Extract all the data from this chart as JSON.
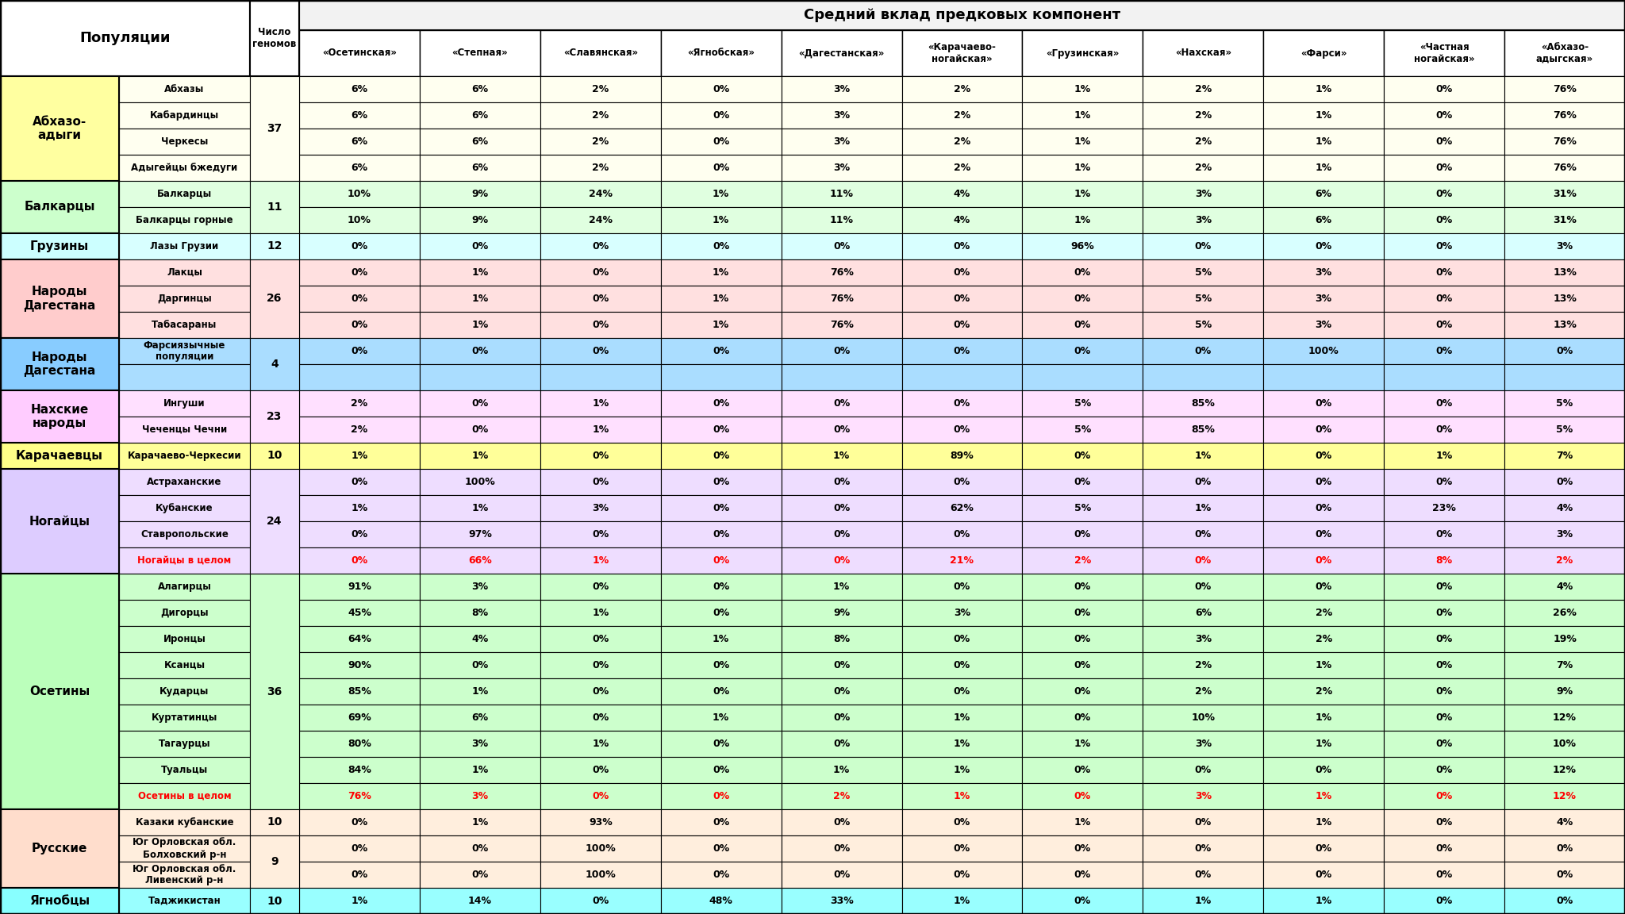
{
  "title_header": "Средний вклад предковых компонент",
  "col1_header": "Популяции",
  "col2_header": "Число\nгеномов",
  "col_headers": [
    "«Осетинская»",
    "«Степная»",
    "«Славянская»",
    "«Ягнобская»",
    "«Дагестанская»",
    "«Карачаево-\nногайская»",
    "«Грузинская»",
    "«Нахская»",
    "«Фарси»",
    "«Частная\nногайская»",
    "«Абхазо-\nадыгская»"
  ],
  "rows": [
    {
      "group": "Абхазо-\nадыги",
      "gcolor": "#ffffa0",
      "gsz": 4,
      "genomes": "37",
      "gsz_genome": 4,
      "sub": "Абхазы",
      "scolor": "#fffff0",
      "red": false,
      "vals": [
        "6%",
        "6%",
        "2%",
        "0%",
        "3%",
        "2%",
        "1%",
        "2%",
        "1%",
        "0%",
        "76%"
      ]
    },
    {
      "group": "Абхазо-\nадыги",
      "gcolor": "#ffffa0",
      "gsz": 4,
      "genomes": "",
      "gsz_genome": 0,
      "sub": "Кабардинцы",
      "scolor": "#fffff0",
      "red": false,
      "vals": [
        "6%",
        "6%",
        "2%",
        "0%",
        "3%",
        "2%",
        "1%",
        "2%",
        "1%",
        "0%",
        "76%"
      ]
    },
    {
      "group": "Абхазо-\nадыги",
      "gcolor": "#ffffa0",
      "gsz": 4,
      "genomes": "",
      "gsz_genome": 0,
      "sub": "Черкесы",
      "scolor": "#fffff0",
      "red": false,
      "vals": [
        "6%",
        "6%",
        "2%",
        "0%",
        "3%",
        "2%",
        "1%",
        "2%",
        "1%",
        "0%",
        "76%"
      ]
    },
    {
      "group": "Абхазо-\nадыги",
      "gcolor": "#ffffa0",
      "gsz": 4,
      "genomes": "",
      "gsz_genome": 0,
      "sub": "Адыгейцы бжедуги",
      "scolor": "#fffff0",
      "red": false,
      "vals": [
        "6%",
        "6%",
        "2%",
        "0%",
        "3%",
        "2%",
        "1%",
        "2%",
        "1%",
        "0%",
        "76%"
      ]
    },
    {
      "group": "Балкарцы",
      "gcolor": "#ccffcc",
      "gsz": 2,
      "genomes": "11",
      "gsz_genome": 2,
      "sub": "Балкарцы",
      "scolor": "#e0ffe0",
      "red": false,
      "vals": [
        "10%",
        "9%",
        "24%",
        "1%",
        "11%",
        "4%",
        "1%",
        "3%",
        "6%",
        "0%",
        "31%"
      ]
    },
    {
      "group": "Балкарцы",
      "gcolor": "#ccffcc",
      "gsz": 2,
      "genomes": "",
      "gsz_genome": 0,
      "sub": "Балкарцы горные",
      "scolor": "#e0ffe0",
      "red": false,
      "vals": [
        "10%",
        "9%",
        "24%",
        "1%",
        "11%",
        "4%",
        "1%",
        "3%",
        "6%",
        "0%",
        "31%"
      ]
    },
    {
      "group": "Грузины",
      "gcolor": "#ccffff",
      "gsz": 1,
      "genomes": "12",
      "gsz_genome": 1,
      "sub": "Лазы Грузии",
      "scolor": "#d8ffff",
      "red": false,
      "vals": [
        "0%",
        "0%",
        "0%",
        "0%",
        "0%",
        "0%",
        "96%",
        "0%",
        "0%",
        "0%",
        "3%"
      ]
    },
    {
      "group": "Народы\nДагестана",
      "gcolor": "#ffcccc",
      "gsz": 3,
      "genomes": "26",
      "gsz_genome": 3,
      "sub": "Лакцы",
      "scolor": "#ffe0e0",
      "red": false,
      "vals": [
        "0%",
        "1%",
        "0%",
        "1%",
        "76%",
        "0%",
        "0%",
        "5%",
        "3%",
        "0%",
        "13%"
      ]
    },
    {
      "group": "Народы\nДагестана",
      "gcolor": "#ffcccc",
      "gsz": 3,
      "genomes": "",
      "gsz_genome": 0,
      "sub": "Даргинцы",
      "scolor": "#ffe0e0",
      "red": false,
      "vals": [
        "0%",
        "1%",
        "0%",
        "1%",
        "76%",
        "0%",
        "0%",
        "5%",
        "3%",
        "0%",
        "13%"
      ]
    },
    {
      "group": "Народы\nДагестана",
      "gcolor": "#ffcccc",
      "gsz": 3,
      "genomes": "",
      "gsz_genome": 0,
      "sub": "Табасараны",
      "scolor": "#ffe0e0",
      "red": false,
      "vals": [
        "0%",
        "1%",
        "0%",
        "1%",
        "76%",
        "0%",
        "0%",
        "5%",
        "3%",
        "0%",
        "13%"
      ]
    },
    {
      "group": "Народы\nДагестана_2",
      "gcolor": "#88ccff",
      "gsz": 2,
      "genomes": "4",
      "gsz_genome": 2,
      "sub": "Фарсиязычные\nпопуляции",
      "scolor": "#aaddff",
      "red": false,
      "vals": [
        "0%",
        "0%",
        "0%",
        "0%",
        "0%",
        "0%",
        "0%",
        "0%",
        "100%",
        "0%",
        "0%"
      ]
    },
    {
      "group": "Народы\nДагестана_2",
      "gcolor": "#88ccff",
      "gsz": 2,
      "genomes": "",
      "gsz_genome": 0,
      "sub": "",
      "scolor": "#aaddff",
      "red": false,
      "vals": [
        "",
        "",
        "",
        "",
        "",
        "",
        "",
        "",
        "",
        "",
        ""
      ]
    },
    {
      "group": "Нахские\nнароды",
      "gcolor": "#ffccff",
      "gsz": 2,
      "genomes": "23",
      "gsz_genome": 2,
      "sub": "Ингуши",
      "scolor": "#ffe0ff",
      "red": false,
      "vals": [
        "2%",
        "0%",
        "1%",
        "0%",
        "0%",
        "0%",
        "5%",
        "85%",
        "0%",
        "0%",
        "5%"
      ]
    },
    {
      "group": "Нахские\nнароды",
      "gcolor": "#ffccff",
      "gsz": 2,
      "genomes": "",
      "gsz_genome": 0,
      "sub": "Чеченцы Чечни",
      "scolor": "#ffe0ff",
      "red": false,
      "vals": [
        "2%",
        "0%",
        "1%",
        "0%",
        "0%",
        "0%",
        "5%",
        "85%",
        "0%",
        "0%",
        "5%"
      ]
    },
    {
      "group": "Карачаевцы",
      "gcolor": "#ffff88",
      "gsz": 1,
      "genomes": "10",
      "gsz_genome": 1,
      "sub": "Карачаево-Черкесии",
      "scolor": "#ffff99",
      "red": false,
      "vals": [
        "1%",
        "1%",
        "0%",
        "0%",
        "1%",
        "89%",
        "0%",
        "1%",
        "0%",
        "1%",
        "7%"
      ]
    },
    {
      "group": "Ногайцы",
      "gcolor": "#ddccff",
      "gsz": 4,
      "genomes": "24",
      "gsz_genome": 4,
      "sub": "Астраханские",
      "scolor": "#eeddff",
      "red": false,
      "vals": [
        "0%",
        "100%",
        "0%",
        "0%",
        "0%",
        "0%",
        "0%",
        "0%",
        "0%",
        "0%",
        "0%"
      ]
    },
    {
      "group": "Ногайцы",
      "gcolor": "#ddccff",
      "gsz": 4,
      "genomes": "",
      "gsz_genome": 0,
      "sub": "Кубанские",
      "scolor": "#eeddff",
      "red": false,
      "vals": [
        "1%",
        "1%",
        "3%",
        "0%",
        "0%",
        "62%",
        "5%",
        "1%",
        "0%",
        "23%",
        "4%"
      ]
    },
    {
      "group": "Ногайцы",
      "gcolor": "#ddccff",
      "gsz": 4,
      "genomes": "",
      "gsz_genome": 0,
      "sub": "Ставропольские",
      "scolor": "#eeddff",
      "red": false,
      "vals": [
        "0%",
        "97%",
        "0%",
        "0%",
        "0%",
        "0%",
        "0%",
        "0%",
        "0%",
        "0%",
        "3%"
      ]
    },
    {
      "group": "Ногайцы",
      "gcolor": "#ddccff",
      "gsz": 4,
      "genomes": "",
      "gsz_genome": 0,
      "sub": "Ногайцы в целом",
      "scolor": "#eeddff",
      "red": true,
      "vals": [
        "0%",
        "66%",
        "1%",
        "0%",
        "0%",
        "21%",
        "2%",
        "0%",
        "0%",
        "8%",
        "2%"
      ]
    },
    {
      "group": "Осетины",
      "gcolor": "#bbffbb",
      "gsz": 9,
      "genomes": "36",
      "gsz_genome": 9,
      "sub": "Алагирцы",
      "scolor": "#ccffcc",
      "red": false,
      "vals": [
        "91%",
        "3%",
        "0%",
        "0%",
        "1%",
        "0%",
        "0%",
        "0%",
        "0%",
        "0%",
        "4%"
      ]
    },
    {
      "group": "Осетины",
      "gcolor": "#bbffbb",
      "gsz": 9,
      "genomes": "",
      "gsz_genome": 0,
      "sub": "Дигорцы",
      "scolor": "#ccffcc",
      "red": false,
      "vals": [
        "45%",
        "8%",
        "1%",
        "0%",
        "9%",
        "3%",
        "0%",
        "6%",
        "2%",
        "0%",
        "26%"
      ]
    },
    {
      "group": "Осетины",
      "gcolor": "#bbffbb",
      "gsz": 9,
      "genomes": "",
      "gsz_genome": 0,
      "sub": "Иронцы",
      "scolor": "#ccffcc",
      "red": false,
      "vals": [
        "64%",
        "4%",
        "0%",
        "1%",
        "8%",
        "0%",
        "0%",
        "3%",
        "2%",
        "0%",
        "19%"
      ]
    },
    {
      "group": "Осетины",
      "gcolor": "#bbffbb",
      "gsz": 9,
      "genomes": "",
      "gsz_genome": 0,
      "sub": "Ксанцы",
      "scolor": "#ccffcc",
      "red": false,
      "vals": [
        "90%",
        "0%",
        "0%",
        "0%",
        "0%",
        "0%",
        "0%",
        "2%",
        "1%",
        "0%",
        "7%"
      ]
    },
    {
      "group": "Осетины",
      "gcolor": "#bbffbb",
      "gsz": 9,
      "genomes": "",
      "gsz_genome": 0,
      "sub": "Кударцы",
      "scolor": "#ccffcc",
      "red": false,
      "vals": [
        "85%",
        "1%",
        "0%",
        "0%",
        "0%",
        "0%",
        "0%",
        "2%",
        "2%",
        "0%",
        "9%"
      ]
    },
    {
      "group": "Осетины",
      "gcolor": "#bbffbb",
      "gsz": 9,
      "genomes": "",
      "gsz_genome": 0,
      "sub": "Куртатинцы",
      "scolor": "#ccffcc",
      "red": false,
      "vals": [
        "69%",
        "6%",
        "0%",
        "1%",
        "0%",
        "1%",
        "0%",
        "10%",
        "1%",
        "0%",
        "12%"
      ]
    },
    {
      "group": "Осетины",
      "gcolor": "#bbffbb",
      "gsz": 9,
      "genomes": "",
      "gsz_genome": 0,
      "sub": "Тагаурцы",
      "scolor": "#ccffcc",
      "red": false,
      "vals": [
        "80%",
        "3%",
        "1%",
        "0%",
        "0%",
        "1%",
        "1%",
        "3%",
        "1%",
        "0%",
        "10%"
      ]
    },
    {
      "group": "Осетины",
      "gcolor": "#bbffbb",
      "gsz": 9,
      "genomes": "",
      "gsz_genome": 0,
      "sub": "Туальцы",
      "scolor": "#ccffcc",
      "red": false,
      "vals": [
        "84%",
        "1%",
        "0%",
        "0%",
        "1%",
        "1%",
        "0%",
        "0%",
        "0%",
        "0%",
        "12%"
      ]
    },
    {
      "group": "Осетины",
      "gcolor": "#bbffbb",
      "gsz": 9,
      "genomes": "",
      "gsz_genome": 0,
      "sub": "Осетины в целом",
      "scolor": "#ccffcc",
      "red": true,
      "vals": [
        "76%",
        "3%",
        "0%",
        "0%",
        "2%",
        "1%",
        "0%",
        "3%",
        "1%",
        "0%",
        "12%"
      ]
    },
    {
      "group": "Русские",
      "gcolor": "#ffddcc",
      "gsz": 3,
      "genomes": "10",
      "gsz_genome": 1,
      "sub": "Казаки кубанские",
      "scolor": "#ffeedd",
      "red": false,
      "vals": [
        "0%",
        "1%",
        "93%",
        "0%",
        "0%",
        "0%",
        "1%",
        "0%",
        "1%",
        "0%",
        "4%"
      ]
    },
    {
      "group": "Русские",
      "gcolor": "#ffddcc",
      "gsz": 3,
      "genomes": "9",
      "gsz_genome": 2,
      "sub": "Юг Орловская обл.\nБолховский р-н",
      "scolor": "#ffeedd",
      "red": false,
      "vals": [
        "0%",
        "0%",
        "100%",
        "0%",
        "0%",
        "0%",
        "0%",
        "0%",
        "0%",
        "0%",
        "0%"
      ]
    },
    {
      "group": "Русские",
      "gcolor": "#ffddcc",
      "gsz": 3,
      "genomes": "",
      "gsz_genome": 0,
      "sub": "Юг Орловская обл.\nЛивенский р-н",
      "scolor": "#ffeedd",
      "red": false,
      "vals": [
        "0%",
        "0%",
        "100%",
        "0%",
        "0%",
        "0%",
        "0%",
        "0%",
        "0%",
        "0%",
        "0%"
      ]
    },
    {
      "group": "Ягнобцы",
      "gcolor": "#88ffff",
      "gsz": 1,
      "genomes": "10",
      "gsz_genome": 1,
      "sub": "Таджикистан",
      "scolor": "#99ffff",
      "red": false,
      "vals": [
        "1%",
        "14%",
        "0%",
        "48%",
        "33%",
        "1%",
        "0%",
        "1%",
        "1%",
        "0%",
        "0%"
      ]
    }
  ],
  "group_display_names": {
    "Народы\nДагестана_2": "Народы\nДагестана"
  }
}
